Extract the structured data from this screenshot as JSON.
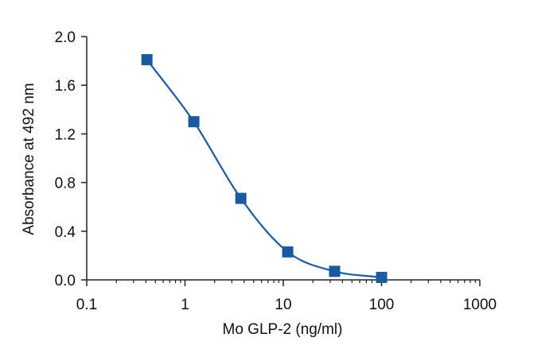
{
  "chart_data": {
    "type": "scatter",
    "title": "",
    "xlabel": "Mo GLP-2 (ng/ml)",
    "ylabel": "Absorbance at 492 nm",
    "x_scale": "log",
    "xlim": [
      0.1,
      1000
    ],
    "ylim": [
      0.0,
      2.0
    ],
    "x_ticks": [
      "0.1",
      "1",
      "10",
      "100",
      "1000"
    ],
    "y_ticks": [
      "0.0",
      "0.4",
      "0.8",
      "1.2",
      "1.6",
      "2.0"
    ],
    "grid": false,
    "legend": "none",
    "series": [
      {
        "marker": "square",
        "color": "#1a5a9e",
        "fit_line": "sigmoidal curve",
        "points": [
          {
            "x": 0.41,
            "y": 1.81
          },
          {
            "x": 1.23,
            "y": 1.3
          },
          {
            "x": 3.7,
            "y": 0.67
          },
          {
            "x": 11.1,
            "y": 0.23
          },
          {
            "x": 33.3,
            "y": 0.07
          },
          {
            "x": 100,
            "y": 0.02
          }
        ]
      }
    ]
  }
}
